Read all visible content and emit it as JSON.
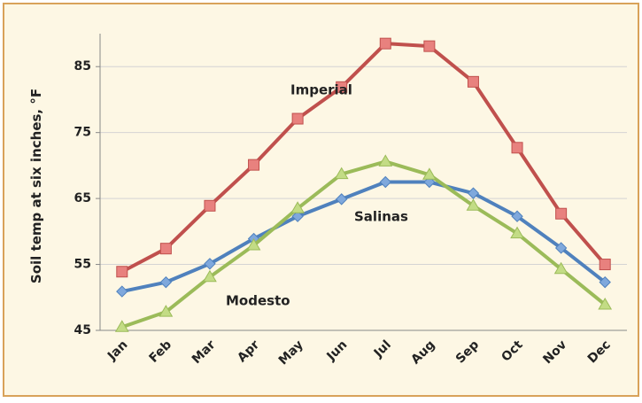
{
  "chart_data": {
    "type": "line",
    "y_label": "Soil temp at six inches, °F",
    "categories": [
      "Jan",
      "Feb",
      "Mar",
      "Apr",
      "May",
      "Jun",
      "Jul",
      "Aug",
      "Sep",
      "Oct",
      "Nov",
      "Dec"
    ],
    "series": [
      {
        "name": "Imperial",
        "color": "#c0504d",
        "marker": "square",
        "values": [
          53.9,
          57.4,
          63.9,
          70.1,
          77.1,
          81.9,
          88.5,
          88.1,
          82.7,
          72.7,
          62.7,
          55
        ]
      },
      {
        "name": "Salinas",
        "color": "#4f81bd",
        "marker": "diamond",
        "values": [
          50.9,
          52.3,
          55.1,
          58.9,
          62.3,
          64.9,
          67.5,
          67.5,
          65.8,
          62.3,
          57.5,
          52.3
        ]
      },
      {
        "name": "Modesto",
        "color": "#9bbb59",
        "marker": "triangle",
        "values": [
          45.5,
          47.8,
          53.1,
          57.9,
          63.5,
          68.7,
          70.6,
          68.6,
          63.9,
          59.7,
          54.3,
          48.9
        ]
      }
    ],
    "ylim": [
      45,
      90
    ],
    "yticks": [
      45,
      55,
      65,
      75,
      85
    ],
    "grid": true
  }
}
